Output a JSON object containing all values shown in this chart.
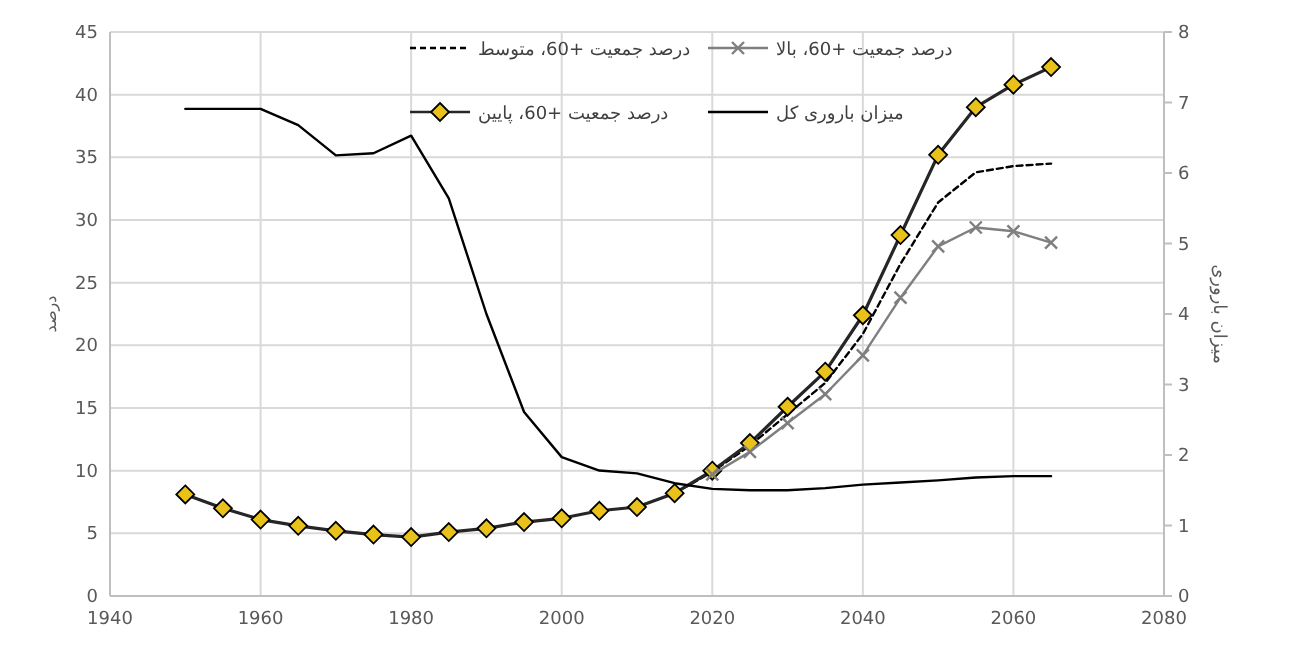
{
  "chart_data": {
    "type": "line",
    "ylabel": "درصد",
    "y2label": "میزان باروری",
    "x": [
      1950,
      1955,
      1960,
      1965,
      1970,
      1975,
      1980,
      1985,
      1990,
      1995,
      2000,
      2005,
      2010,
      2015,
      2020,
      2025,
      2030,
      2035,
      2040,
      2045,
      2050,
      2055,
      2060,
      2065
    ],
    "series": [
      {
        "name": "درصد جمعیت +60، متوسط",
        "color": "#000000",
        "line_style": "dashed",
        "marker": "none",
        "values": [
          null,
          null,
          null,
          null,
          null,
          null,
          null,
          null,
          null,
          null,
          null,
          null,
          null,
          8.2,
          9.9,
          12.0,
          14.5,
          17.0,
          20.9,
          26.5,
          31.4,
          33.8,
          34.3,
          34.5
        ]
      },
      {
        "name": "درصد جمعیت +60، بالا",
        "color": "#7f7f7f",
        "line_style": "solid",
        "marker": "cross",
        "values": [
          null,
          null,
          null,
          null,
          null,
          null,
          null,
          null,
          null,
          null,
          null,
          null,
          null,
          null,
          9.7,
          11.5,
          13.8,
          16.1,
          19.2,
          23.8,
          27.9,
          29.4,
          29.1,
          28.2
        ]
      },
      {
        "name": "درصد جمعیت +60، پایین",
        "color": "#e8c21a",
        "line_style": "solid",
        "marker": "diamond",
        "values": [
          8.1,
          7.0,
          6.1,
          5.6,
          5.2,
          4.9,
          4.7,
          5.1,
          5.4,
          5.9,
          6.2,
          6.8,
          7.1,
          8.2,
          10.0,
          12.2,
          15.1,
          17.9,
          22.4,
          28.8,
          35.2,
          39.0,
          40.8,
          42.2
        ]
      },
      {
        "name": "میزان باروری کل",
        "color": "#000000",
        "line_style": "solid",
        "marker": "none",
        "axis": "y2",
        "values": [
          6.91,
          6.91,
          6.91,
          6.68,
          6.25,
          6.28,
          6.53,
          5.64,
          4.0,
          2.61,
          1.97,
          1.78,
          1.74,
          1.6,
          1.52,
          1.5,
          1.5,
          1.53,
          1.58,
          1.61,
          1.64,
          1.68,
          1.7,
          1.7
        ]
      }
    ],
    "xlim": [
      1940,
      2080
    ],
    "xticks": [
      1940,
      1960,
      1980,
      2000,
      2020,
      2040,
      2060,
      2080
    ],
    "ylim": [
      0,
      45
    ],
    "yticks": [
      0,
      5,
      10,
      15,
      20,
      25,
      30,
      35,
      40,
      45
    ],
    "y2lim": [
      0,
      8
    ],
    "y2ticks": [
      0,
      1,
      2,
      3,
      4,
      5,
      6,
      7,
      8
    ],
    "grid": true,
    "legend": "top"
  }
}
